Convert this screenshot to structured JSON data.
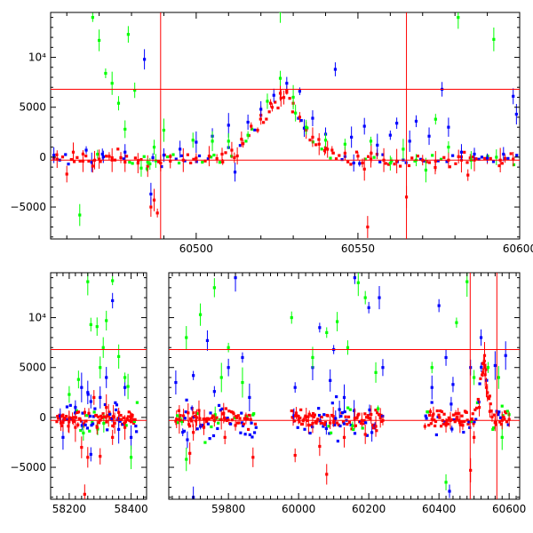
{
  "chart_data": [
    {
      "type": "scatter",
      "panel": "top",
      "title": "",
      "xlabel": "",
      "ylabel": "",
      "xlim": [
        60455,
        60600
      ],
      "ylim": [
        -8200,
        14500
      ],
      "xticks": [
        60500,
        60550,
        60600
      ],
      "yticks": [
        -5000,
        0,
        5000,
        10000
      ],
      "ytick_labels": [
        "−5000",
        "0",
        "5000",
        "10⁴"
      ],
      "hlines": [
        6800,
        -300
      ],
      "vlines": [
        60489,
        60565
      ],
      "series": [
        {
          "color": "#ff0000",
          "points": [
            [
              60457,
              -200
            ],
            [
              60460,
              -1700
            ],
            [
              60462,
              500
            ],
            [
              60465,
              -400
            ],
            [
              60468,
              -900
            ],
            [
              60470,
              -200
            ],
            [
              60474,
              -300
            ],
            [
              60478,
              -500
            ],
            [
              60482,
              -600
            ],
            [
              60485,
              -900
            ],
            [
              60486,
              -5000
            ],
            [
              60487,
              -4300
            ],
            [
              60488,
              -5600
            ],
            [
              60489,
              -600
            ],
            [
              60492,
              -400
            ],
            [
              60496,
              -300
            ],
            [
              60500,
              -100
            ],
            [
              60504,
              100
            ],
            [
              60508,
              300
            ],
            [
              60511,
              700
            ],
            [
              60514,
              1800
            ],
            [
              60517,
              3100
            ],
            [
              60520,
              4200
            ],
            [
              60523,
              5400
            ],
            [
              60526,
              6400
            ],
            [
              60528,
              6700
            ],
            [
              60530,
              5400
            ],
            [
              60532,
              4000
            ],
            [
              60534,
              2700
            ],
            [
              60536,
              2000
            ],
            [
              60538,
              1300
            ],
            [
              60540,
              900
            ],
            [
              60542,
              700
            ],
            [
              60546,
              400
            ],
            [
              60550,
              100
            ],
            [
              60552,
              -1200
            ],
            [
              60553,
              -7000
            ],
            [
              60554,
              -200
            ],
            [
              60558,
              -300
            ],
            [
              60562,
              -400
            ],
            [
              60565,
              -4000
            ],
            [
              60570,
              -300
            ],
            [
              60574,
              -400
            ],
            [
              60578,
              -300
            ],
            [
              60582,
              -300
            ],
            [
              60584,
              -1800
            ],
            [
              60586,
              -300
            ],
            [
              60590,
              -200
            ],
            [
              60594,
              -300
            ],
            [
              60598,
              -200
            ]
          ]
        },
        {
          "color": "#0000ff",
          "points": [
            [
              60456,
              200
            ],
            [
              60466,
              700
            ],
            [
              60471,
              300
            ],
            [
              60478,
              500
            ],
            [
              60484,
              9800
            ],
            [
              60486,
              -3700
            ],
            [
              60490,
              200
            ],
            [
              60495,
              800
            ],
            [
              60500,
              1500
            ],
            [
              60505,
              2100
            ],
            [
              60510,
              3200
            ],
            [
              60512,
              -1500
            ],
            [
              60516,
              3500
            ],
            [
              60520,
              4800
            ],
            [
              60524,
              6200
            ],
            [
              60528,
              7400
            ],
            [
              60532,
              6600
            ],
            [
              60536,
              3900
            ],
            [
              60540,
              2300
            ],
            [
              60543,
              8800
            ],
            [
              60548,
              2000
            ],
            [
              60552,
              3100
            ],
            [
              60556,
              1200
            ],
            [
              60560,
              2200
            ],
            [
              60562,
              3400
            ],
            [
              60566,
              1600
            ],
            [
              60568,
              3600
            ],
            [
              60572,
              2100
            ],
            [
              60576,
              6800
            ],
            [
              60578,
              3000
            ],
            [
              60582,
              500
            ],
            [
              60586,
              300
            ],
            [
              60590,
              -100
            ],
            [
              60595,
              300
            ],
            [
              60598,
              6100
            ],
            [
              60599,
              4300
            ]
          ]
        },
        {
          "color": "#00ff00",
          "points": [
            [
              60468,
              14000
            ],
            [
              60470,
              11700
            ],
            [
              60472,
              8400
            ],
            [
              60474,
              7400
            ],
            [
              60476,
              5400
            ],
            [
              60478,
              2800
            ],
            [
              60479,
              12300
            ],
            [
              60481,
              6700
            ],
            [
              60483,
              -1100
            ],
            [
              60485,
              -500
            ],
            [
              60487,
              1000
            ],
            [
              60490,
              2700
            ],
            [
              60499,
              1700
            ],
            [
              60505,
              1600
            ],
            [
              60510,
              1600
            ],
            [
              60516,
              2200
            ],
            [
              60522,
              5600
            ],
            [
              60526,
              7900
            ],
            [
              60530,
              6000
            ],
            [
              60534,
              3000
            ],
            [
              60540,
              1700
            ],
            [
              60546,
              1300
            ],
            [
              60554,
              1600
            ],
            [
              60560,
              -600
            ],
            [
              60564,
              800
            ],
            [
              60568,
              -300
            ],
            [
              60571,
              -1300
            ],
            [
              60574,
              3800
            ],
            [
              60578,
              1000
            ],
            [
              60581,
              14000
            ],
            [
              60585,
              -300
            ],
            [
              60592,
              11800
            ],
            [
              60464,
              -5800
            ],
            [
              60526,
              14600
            ]
          ]
        }
      ]
    },
    {
      "type": "scatter",
      "panel": "bottom",
      "title": "",
      "xlabel": "",
      "ylabel": "",
      "x_segments": [
        [
          58140,
          58450
        ],
        [
          59630,
          60630
        ]
      ],
      "ylim": [
        -8200,
        14500
      ],
      "xticks": [
        58200,
        58400,
        59800,
        60000,
        60200,
        60400,
        60600
      ],
      "yticks": [
        -5000,
        0,
        5000,
        10000
      ],
      "ytick_labels": [
        "−5000",
        "0",
        "5000",
        "10⁴"
      ],
      "hlines": [
        6800,
        -300
      ],
      "vlines": [
        60489,
        60565
      ],
      "bands": [
        {
          "x0": 58160,
          "x1": 58420
        },
        {
          "x0": 59650,
          "x1": 59880
        },
        {
          "x0": 59980,
          "x1": 60240
        },
        {
          "x0": 60360,
          "x1": 60600
        }
      ],
      "series": [
        {
          "color": "#0000ff",
          "points": [
            [
              58180,
              -2000
            ],
            [
              58220,
              1000
            ],
            [
              58240,
              3000
            ],
            [
              58260,
              2500
            ],
            [
              58270,
              -3700
            ],
            [
              58300,
              2000
            ],
            [
              58320,
              4000
            ],
            [
              58340,
              11700
            ],
            [
              58360,
              -1200
            ],
            [
              58380,
              3000
            ],
            [
              58400,
              -2000
            ],
            [
              59650,
              3500
            ],
            [
              59700,
              4200
            ],
            [
              59740,
              7700
            ],
            [
              59760,
              2600
            ],
            [
              59800,
              5000
            ],
            [
              59820,
              14000
            ],
            [
              59840,
              6000
            ],
            [
              59860,
              2000
            ],
            [
              59700,
              -8000
            ],
            [
              59990,
              3000
            ],
            [
              60040,
              5000
            ],
            [
              60060,
              9000
            ],
            [
              60090,
              3700
            ],
            [
              60100,
              6800
            ],
            [
              60130,
              2000
            ],
            [
              60160,
              14000
            ],
            [
              60200,
              11000
            ],
            [
              60230,
              12000
            ],
            [
              60240,
              5000
            ],
            [
              60380,
              3000
            ],
            [
              60400,
              11200
            ],
            [
              60420,
              6000
            ],
            [
              60440,
              3300
            ],
            [
              60490,
              5000
            ],
            [
              60520,
              8000
            ],
            [
              60560,
              5200
            ],
            [
              60590,
              6200
            ],
            [
              60430,
              -7400
            ]
          ]
        },
        {
          "color": "#00ff00",
          "points": [
            [
              58200,
              2300
            ],
            [
              58230,
              3800
            ],
            [
              58260,
              13600
            ],
            [
              58270,
              9300
            ],
            [
              58290,
              9100
            ],
            [
              58300,
              5000
            ],
            [
              58310,
              7000
            ],
            [
              58320,
              9700
            ],
            [
              58340,
              13700
            ],
            [
              58360,
              6100
            ],
            [
              58380,
              4000
            ],
            [
              58390,
              3100
            ],
            [
              58400,
              -4000
            ],
            [
              59680,
              8000
            ],
            [
              59720,
              10300
            ],
            [
              59760,
              13000
            ],
            [
              59780,
              4000
            ],
            [
              59800,
              7000
            ],
            [
              59840,
              3500
            ],
            [
              59680,
              -4200
            ],
            [
              59980,
              10000
            ],
            [
              60040,
              6000
            ],
            [
              60080,
              8500
            ],
            [
              60110,
              9600
            ],
            [
              60140,
              7000
            ],
            [
              60170,
              13500
            ],
            [
              60190,
              12000
            ],
            [
              60220,
              4500
            ],
            [
              60380,
              5000
            ],
            [
              60420,
              -6500
            ],
            [
              60450,
              9500
            ],
            [
              60480,
              13600
            ],
            [
              60500,
              4000
            ],
            [
              60540,
              5000
            ],
            [
              60570,
              4000
            ],
            [
              60580,
              -2000
            ]
          ]
        },
        {
          "color": "#ff0000",
          "points": [
            [
              58180,
              -500
            ],
            [
              58200,
              -100
            ],
            [
              58220,
              -1000
            ],
            [
              58240,
              -3000
            ],
            [
              58250,
              -7700
            ],
            [
              58260,
              -4000
            ],
            [
              58280,
              2000
            ],
            [
              58290,
              -1000
            ],
            [
              58300,
              -3900
            ],
            [
              58320,
              1000
            ],
            [
              58340,
              -2000
            ],
            [
              58360,
              500
            ],
            [
              58380,
              -1000
            ],
            [
              58400,
              0
            ],
            [
              59660,
              -200
            ],
            [
              59690,
              -3600
            ],
            [
              59700,
              -1500
            ],
            [
              59730,
              -1000
            ],
            [
              59760,
              -300
            ],
            [
              59790,
              -2000
            ],
            [
              59820,
              -800
            ],
            [
              59850,
              -100
            ],
            [
              59870,
              -4000
            ],
            [
              59990,
              -3800
            ],
            [
              60000,
              -200
            ],
            [
              60040,
              -600
            ],
            [
              60060,
              -2900
            ],
            [
              60080,
              -5700
            ],
            [
              60100,
              -500
            ],
            [
              60130,
              -2000
            ],
            [
              60160,
              -100
            ],
            [
              60190,
              -1700
            ],
            [
              60220,
              -900
            ],
            [
              60240,
              -300
            ],
            [
              60380,
              -200
            ],
            [
              60420,
              -800
            ],
            [
              60460,
              -500
            ],
            [
              60490,
              -5300
            ],
            [
              60500,
              -2000
            ],
            [
              60515,
              1000
            ],
            [
              60525,
              4500
            ],
            [
              60530,
              6200
            ],
            [
              60535,
              3000
            ],
            [
              60545,
              600
            ],
            [
              60560,
              -500
            ],
            [
              60580,
              -300
            ],
            [
              60600,
              -200
            ]
          ]
        }
      ]
    }
  ]
}
